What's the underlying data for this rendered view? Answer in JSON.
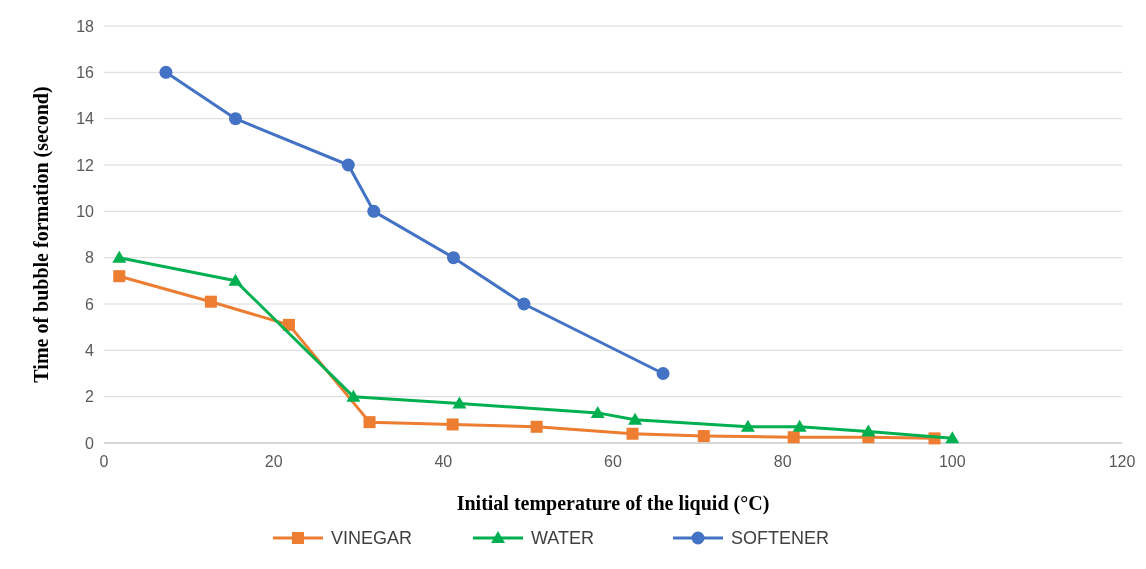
{
  "chart_data": {
    "type": "line",
    "xlabel": "Initial temperature of the liquid (°C)",
    "ylabel": "Time of bubble formation (second)",
    "xlim": [
      0,
      120
    ],
    "xticks": [
      0,
      20,
      40,
      60,
      80,
      100,
      120
    ],
    "ylim": [
      0,
      18
    ],
    "yticks": [
      0,
      2,
      4,
      6,
      8,
      10,
      12,
      14,
      16,
      18
    ],
    "grid": "y",
    "legend": "bottom",
    "series": [
      {
        "name": "VINEGAR",
        "color": "#ed7d31",
        "marker": "square",
        "x": [
          1.8,
          12.6,
          21.8,
          31.3,
          41.1,
          51,
          62.3,
          70.7,
          81.3,
          90.1,
          97.9
        ],
        "values": [
          7.2,
          6.1,
          5.1,
          0.9,
          0.8,
          0.7,
          0.4,
          0.3,
          0.25,
          0.25,
          0.2
        ]
      },
      {
        "name": "WATER",
        "color": "#00b050",
        "marker": "triangle",
        "x": [
          1.8,
          15.5,
          29.4,
          41.9,
          58.2,
          62.6,
          75.9,
          82,
          90.1,
          100
        ],
        "values": [
          8,
          7,
          2,
          1.7,
          1.3,
          1,
          0.7,
          0.7,
          0.5,
          0.2
        ]
      },
      {
        "name": "SOFTENER",
        "color": "#4472c4",
        "marker": "circle",
        "x": [
          7.3,
          15.5,
          28.8,
          31.8,
          41.2,
          49.5,
          65.9
        ],
        "values": [
          16,
          14,
          12,
          10,
          8,
          6,
          3
        ]
      }
    ]
  }
}
